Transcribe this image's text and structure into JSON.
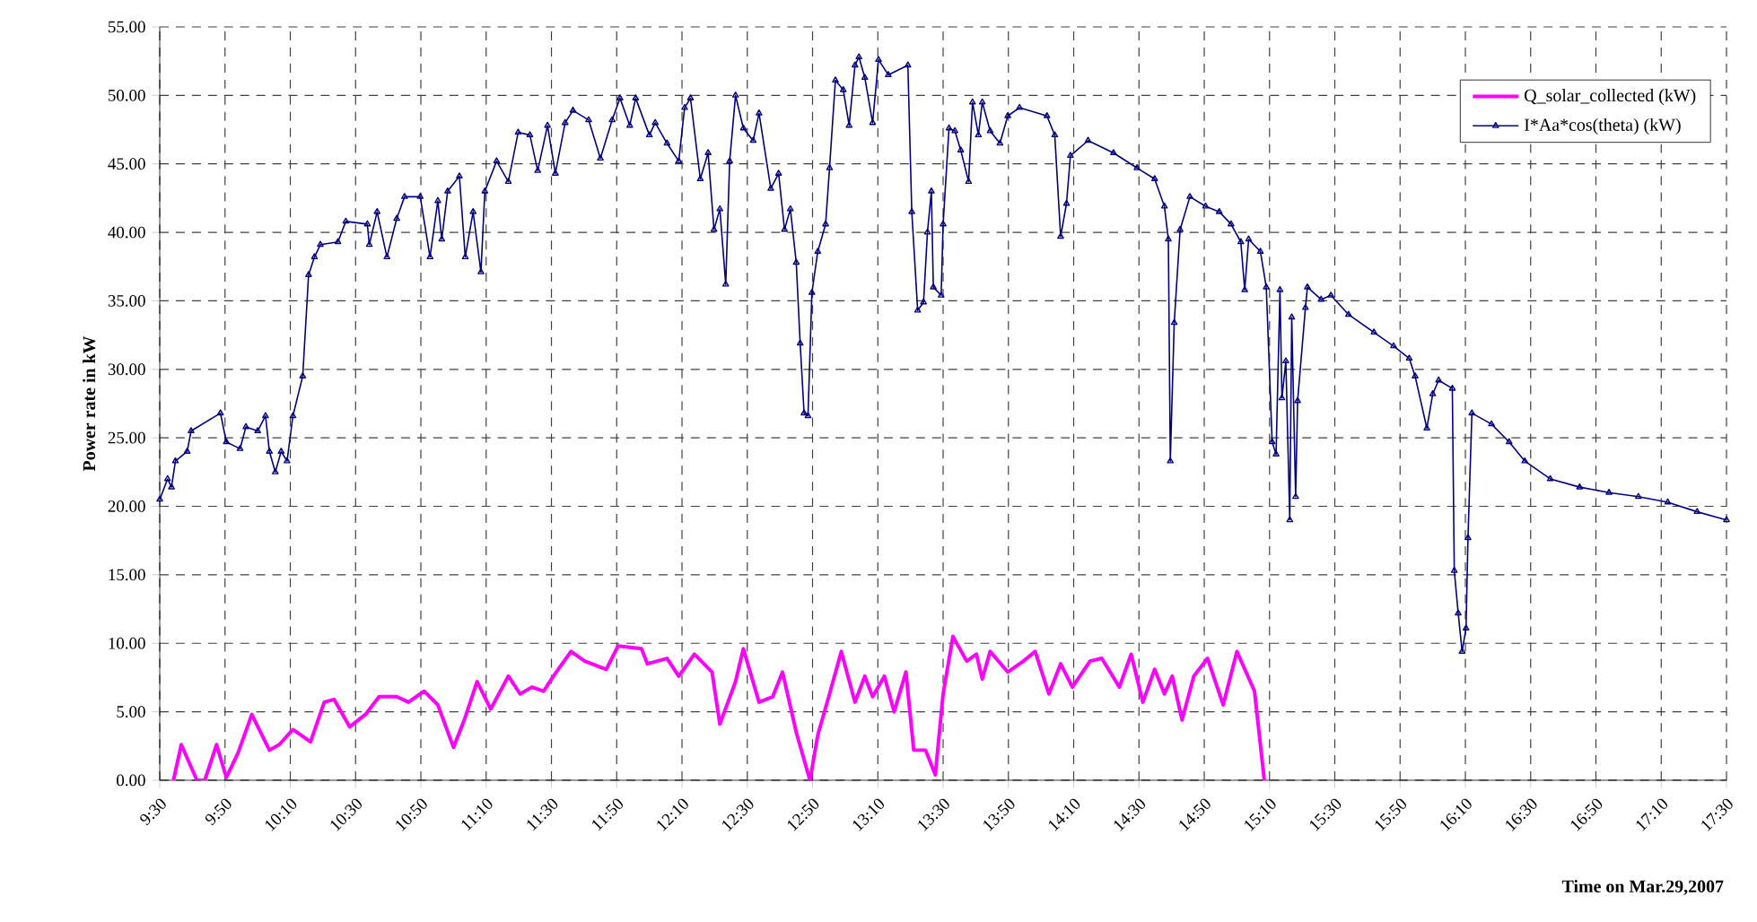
{
  "chart_data": {
    "type": "line",
    "xlabel": "Time on Mar.29,2007",
    "ylabel": "Power rate in kW",
    "xlim": [
      9.5,
      17.5
    ],
    "ylim": [
      0,
      55
    ],
    "xticks": [
      {
        "value": 9.5,
        "label": "9:30"
      },
      {
        "value": 9.8333,
        "label": "9:50"
      },
      {
        "value": 10.1667,
        "label": "10:10"
      },
      {
        "value": 10.5,
        "label": "10:30"
      },
      {
        "value": 10.8333,
        "label": "10:50"
      },
      {
        "value": 11.1667,
        "label": "11:10"
      },
      {
        "value": 11.5,
        "label": "11:30"
      },
      {
        "value": 11.8333,
        "label": "11:50"
      },
      {
        "value": 12.1667,
        "label": "12:10"
      },
      {
        "value": 12.5,
        "label": "12:30"
      },
      {
        "value": 12.8333,
        "label": "12:50"
      },
      {
        "value": 13.1667,
        "label": "13:10"
      },
      {
        "value": 13.5,
        "label": "13:30"
      },
      {
        "value": 13.8333,
        "label": "13:50"
      },
      {
        "value": 14.1667,
        "label": "14:10"
      },
      {
        "value": 14.5,
        "label": "14:30"
      },
      {
        "value": 14.8333,
        "label": "14:50"
      },
      {
        "value": 15.1667,
        "label": "15:10"
      },
      {
        "value": 15.5,
        "label": "15:30"
      },
      {
        "value": 15.8333,
        "label": "15:50"
      },
      {
        "value": 16.1667,
        "label": "16:10"
      },
      {
        "value": 16.5,
        "label": "16:30"
      },
      {
        "value": 16.8333,
        "label": "16:50"
      },
      {
        "value": 17.1667,
        "label": "17:10"
      },
      {
        "value": 17.5,
        "label": "17:30"
      }
    ],
    "yticks": [
      {
        "value": 0,
        "label": "0.00"
      },
      {
        "value": 5,
        "label": "5.00"
      },
      {
        "value": 10,
        "label": "10.00"
      },
      {
        "value": 15,
        "label": "15.00"
      },
      {
        "value": 20,
        "label": "20.00"
      },
      {
        "value": 25,
        "label": "25.00"
      },
      {
        "value": 30,
        "label": "30.00"
      },
      {
        "value": 35,
        "label": "35.00"
      },
      {
        "value": 40,
        "label": "40.00"
      },
      {
        "value": 45,
        "label": "45.00"
      },
      {
        "value": 50,
        "label": "50.00"
      },
      {
        "value": 55,
        "label": "55.00"
      }
    ],
    "grid": true,
    "legend": "top right",
    "series": [
      {
        "name": "Q_solar_collected (kW)",
        "color": "#ff00ff",
        "marker": "none",
        "x": [
          9.57,
          9.61,
          9.69,
          9.73,
          9.79,
          9.84,
          9.9,
          9.97,
          10.06,
          10.11,
          10.18,
          10.27,
          10.34,
          10.39,
          10.47,
          10.55,
          10.62,
          10.71,
          10.77,
          10.85,
          10.92,
          11.0,
          11.06,
          11.12,
          11.19,
          11.28,
          11.34,
          11.4,
          11.46,
          11.51,
          11.6,
          11.67,
          11.78,
          11.84,
          11.96,
          11.99,
          12.09,
          12.15,
          12.23,
          12.32,
          12.36,
          12.44,
          12.48,
          12.56,
          12.63,
          12.68,
          12.75,
          12.82,
          12.86,
          12.92,
          12.98,
          13.05,
          13.1,
          13.14,
          13.2,
          13.25,
          13.31,
          13.35,
          13.41,
          13.46,
          13.5,
          13.55,
          13.62,
          13.67,
          13.7,
          13.74,
          13.83,
          13.91,
          13.97,
          14.04,
          14.1,
          14.16,
          14.25,
          14.31,
          14.4,
          14.46,
          14.52,
          14.58,
          14.63,
          14.67,
          14.72,
          14.78,
          14.85,
          14.93,
          15.0,
          15.09,
          15.14
        ],
        "values": [
          0,
          2.6,
          0,
          0,
          2.6,
          0.2,
          2.0,
          4.8,
          2.2,
          2.6,
          3.7,
          2.8,
          5.7,
          5.9,
          3.9,
          4.8,
          6.1,
          6.1,
          5.7,
          6.5,
          5.5,
          2.4,
          4.6,
          7.2,
          5.2,
          7.6,
          6.3,
          6.8,
          6.5,
          7.6,
          9.4,
          8.7,
          8.1,
          9.8,
          9.6,
          8.5,
          8.9,
          7.6,
          9.2,
          7.9,
          4.1,
          7.2,
          9.6,
          5.7,
          6.1,
          7.9,
          3.5,
          0,
          3.3,
          6.3,
          9.4,
          5.7,
          7.6,
          6.1,
          7.6,
          5.0,
          7.9,
          2.2,
          2.2,
          0.4,
          6.3,
          10.5,
          8.7,
          9.2,
          7.4,
          9.4,
          7.9,
          8.7,
          9.4,
          6.3,
          8.5,
          6.8,
          8.7,
          8.9,
          6.8,
          9.2,
          5.7,
          8.1,
          6.3,
          7.6,
          4.4,
          7.6,
          8.9,
          5.5,
          9.4,
          6.5,
          0
        ]
      },
      {
        "name": "I*Aa*cos(theta) (kW)",
        "color": "#000080",
        "marker": "triangle",
        "x": [
          9.5,
          9.54,
          9.56,
          9.58,
          9.64,
          9.66,
          9.81,
          9.84,
          9.91,
          9.94,
          10.0,
          10.04,
          10.06,
          10.09,
          10.12,
          10.15,
          10.18,
          10.23,
          10.26,
          10.29,
          10.32,
          10.41,
          10.45,
          10.56,
          10.57,
          10.61,
          10.66,
          10.71,
          10.75,
          10.83,
          10.88,
          10.92,
          10.94,
          10.97,
          11.03,
          11.06,
          11.1,
          11.14,
          11.16,
          11.22,
          11.28,
          11.33,
          11.39,
          11.43,
          11.48,
          11.52,
          11.57,
          11.61,
          11.69,
          11.75,
          11.81,
          11.85,
          11.9,
          11.93,
          12.0,
          12.03,
          12.09,
          12.15,
          12.18,
          12.21,
          12.26,
          12.3,
          12.33,
          12.36,
          12.39,
          12.41,
          12.44,
          12.48,
          12.53,
          12.56,
          12.62,
          12.66,
          12.69,
          12.72,
          12.75,
          12.77,
          12.79,
          12.81,
          12.83,
          12.86,
          12.9,
          12.92,
          12.95,
          12.99,
          13.02,
          13.05,
          13.07,
          13.1,
          13.14,
          13.17,
          13.22,
          13.32,
          13.34,
          13.37,
          13.4,
          13.42,
          13.44,
          13.45,
          13.49,
          13.5,
          13.53,
          13.56,
          13.59,
          13.63,
          13.65,
          13.68,
          13.7,
          13.74,
          13.79,
          13.83,
          13.89,
          14.03,
          14.07,
          14.1,
          14.13,
          14.15,
          14.24,
          14.37,
          14.49,
          14.58,
          14.63,
          14.65,
          14.66,
          14.68,
          14.71,
          14.76,
          14.84,
          14.91,
          14.97,
          15.02,
          15.04,
          15.06,
          15.12,
          15.15,
          15.18,
          15.2,
          15.22,
          15.23,
          15.25,
          15.27,
          15.28,
          15.3,
          15.31,
          15.35,
          15.36,
          15.43,
          15.48,
          15.57,
          15.7,
          15.8,
          15.88,
          15.91,
          15.97,
          16.0,
          16.03,
          16.1,
          16.11,
          16.13,
          16.15,
          16.17,
          16.18,
          16.2,
          16.3,
          16.39,
          16.47,
          16.6,
          16.75,
          16.9,
          17.05,
          17.2,
          17.35,
          17.5
        ],
        "values": [
          20.5,
          22.0,
          21.4,
          23.3,
          24.0,
          25.5,
          26.8,
          24.7,
          24.2,
          25.8,
          25.5,
          26.6,
          24.0,
          22.5,
          24.0,
          23.3,
          26.6,
          29.5,
          36.9,
          38.2,
          39.1,
          39.3,
          40.8,
          40.6,
          39.1,
          41.5,
          38.2,
          41.0,
          42.6,
          42.6,
          38.2,
          42.3,
          39.5,
          43.0,
          44.1,
          38.2,
          41.5,
          37.1,
          43.0,
          45.2,
          43.7,
          47.3,
          47.1,
          44.5,
          47.8,
          44.3,
          48.0,
          48.9,
          48.2,
          45.4,
          48.2,
          49.8,
          47.8,
          49.8,
          47.1,
          48.0,
          46.5,
          45.2,
          49.1,
          49.8,
          43.9,
          45.8,
          40.2,
          41.7,
          36.2,
          45.2,
          50.0,
          47.6,
          46.7,
          48.7,
          43.2,
          44.3,
          40.2,
          41.7,
          37.8,
          31.9,
          26.8,
          26.6,
          35.6,
          38.6,
          40.6,
          44.7,
          51.1,
          50.4,
          47.8,
          52.2,
          52.8,
          51.3,
          48.0,
          52.6,
          51.5,
          52.2,
          41.5,
          34.3,
          34.9,
          40.0,
          43.0,
          36.0,
          35.4,
          40.6,
          47.6,
          47.4,
          46.0,
          43.7,
          49.5,
          47.1,
          49.5,
          47.4,
          46.5,
          48.5,
          49.1,
          48.5,
          47.1,
          39.7,
          42.1,
          45.6,
          46.7,
          45.8,
          44.7,
          43.9,
          41.9,
          39.5,
          23.3,
          33.4,
          40.2,
          42.6,
          41.9,
          41.5,
          40.6,
          39.3,
          35.8,
          39.5,
          38.6,
          36.0,
          24.7,
          23.8,
          35.8,
          27.9,
          30.6,
          19.0,
          33.8,
          20.7,
          27.7,
          34.5,
          36.0,
          35.1,
          35.4,
          34.0,
          32.7,
          31.7,
          30.8,
          29.5,
          25.7,
          28.2,
          29.2,
          28.6,
          15.3,
          12.2,
          9.4,
          11.1,
          17.7,
          26.8,
          26.0,
          24.7,
          23.3,
          22.0,
          21.4,
          21.0,
          20.7,
          20.3,
          19.6,
          19.0
        ]
      }
    ]
  }
}
